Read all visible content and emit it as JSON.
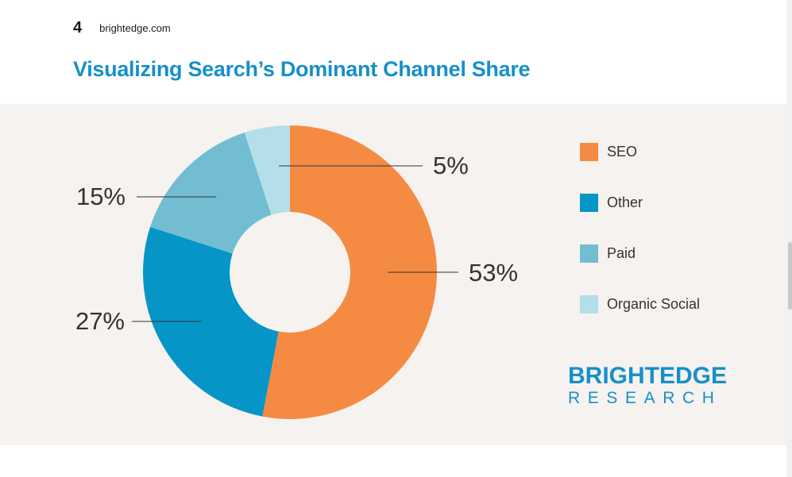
{
  "header": {
    "page_number": "4",
    "site": "brightedge.com"
  },
  "title": "Visualizing Search’s Dominant Channel Share",
  "chart_data": {
    "type": "pie",
    "donut": true,
    "title": "Visualizing Search’s Dominant Channel Share",
    "categories": [
      "SEO",
      "Other",
      "Paid",
      "Organic Social"
    ],
    "values": [
      53,
      27,
      15,
      5
    ],
    "value_labels": [
      "53%",
      "27%",
      "15%",
      "5%"
    ],
    "colors": [
      "#f58b43",
      "#0595c6",
      "#72bdd2",
      "#b3deea"
    ],
    "legend_position": "right"
  },
  "legend": {
    "items": [
      {
        "label": "SEO",
        "color": "#f58b43"
      },
      {
        "label": "Other",
        "color": "#0595c6"
      },
      {
        "label": "Paid",
        "color": "#72bdd2"
      },
      {
        "label": "Organic Social",
        "color": "#b3deea"
      }
    ]
  },
  "brand": {
    "line1": "BRIGHTEDGE",
    "line2": "RESEARCH",
    "color": "#1690c9"
  }
}
